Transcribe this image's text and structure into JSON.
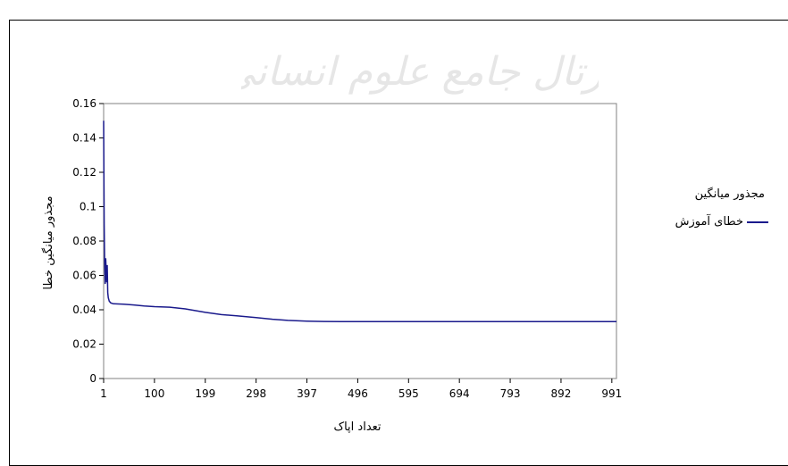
{
  "chart_data": {
    "type": "line",
    "title": "",
    "xlabel": "تعداد اپاک",
    "ylabel": "مجذور میانگین خطا",
    "xlim": [
      1,
      1000
    ],
    "ylim": [
      0,
      0.16
    ],
    "x_ticks": [
      "1",
      "100",
      "199",
      "298",
      "397",
      "496",
      "595",
      "694",
      "793",
      "892",
      "991"
    ],
    "x_tick_values": [
      1,
      100,
      199,
      298,
      397,
      496,
      595,
      694,
      793,
      892,
      991
    ],
    "y_ticks": [
      "0",
      "0.02",
      "0.04",
      "0.06",
      "0.08",
      "0.1",
      "0.12",
      "0.14",
      "0.16"
    ],
    "y_tick_values": [
      0,
      0.02,
      0.04,
      0.06,
      0.08,
      0.1,
      0.12,
      0.14,
      0.16
    ],
    "legend_title": "مجذور میانگین",
    "legend_position": "right",
    "series": [
      {
        "name": "خطای آموزش",
        "color": "#1a1a8c",
        "points": [
          [
            1,
            0.15
          ],
          [
            2,
            0.09
          ],
          [
            3,
            0.068
          ],
          [
            4,
            0.055
          ],
          [
            5,
            0.07
          ],
          [
            6,
            0.062
          ],
          [
            7,
            0.056
          ],
          [
            8,
            0.066
          ],
          [
            9,
            0.05
          ],
          [
            10,
            0.047
          ],
          [
            12,
            0.045
          ],
          [
            15,
            0.044
          ],
          [
            20,
            0.0435
          ],
          [
            40,
            0.0432
          ],
          [
            60,
            0.0428
          ],
          [
            80,
            0.0422
          ],
          [
            100,
            0.0418
          ],
          [
            130,
            0.0415
          ],
          [
            160,
            0.0405
          ],
          [
            199,
            0.0385
          ],
          [
            230,
            0.0372
          ],
          [
            260,
            0.0365
          ],
          [
            298,
            0.0355
          ],
          [
            330,
            0.0345
          ],
          [
            360,
            0.0338
          ],
          [
            397,
            0.0334
          ],
          [
            430,
            0.0332
          ],
          [
            496,
            0.0331
          ],
          [
            595,
            0.0331
          ],
          [
            694,
            0.0331
          ],
          [
            793,
            0.0331
          ],
          [
            892,
            0.0331
          ],
          [
            1000,
            0.0331
          ]
        ]
      }
    ]
  },
  "watermark_text": "پرتال جامع علوم انسانی"
}
